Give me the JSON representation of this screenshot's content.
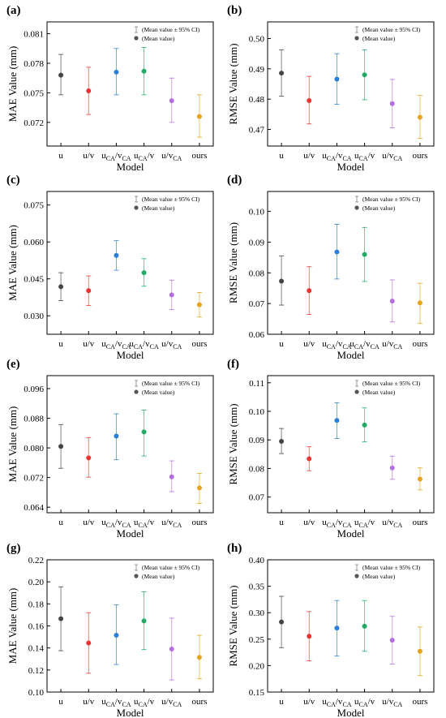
{
  "colors": [
    "#444444",
    "#ee3333",
    "#2b7fd9",
    "#22aa66",
    "#b36fe0",
    "#e6a417"
  ],
  "legend": {
    "ci": "(Mean value ± 95% CI)",
    "mean": "(Mean value)"
  },
  "chart_data": [
    {
      "type": "scatter",
      "panel": "(a)",
      "xlabel": "Model",
      "ylabel": "MAE Value (mm)",
      "ylim": [
        0.0696,
        0.0822
      ],
      "yticks": [
        "0.072",
        "0.075",
        "0.078",
        "0.081"
      ],
      "categories": [
        {
          "main": "u",
          "sub1": "",
          "mid": "",
          "sub2": ""
        },
        {
          "main": "u/v",
          "sub1": "",
          "mid": "",
          "sub2": ""
        },
        {
          "main": "u",
          "sub1": "CA",
          "mid": "/v",
          "sub2": "CA"
        },
        {
          "main": "u",
          "sub1": "CA",
          "mid": "/v",
          "sub2": ""
        },
        {
          "main": "u/v",
          "sub1": "CA",
          "mid": "",
          "sub2": ""
        },
        {
          "main": "ours",
          "sub1": "",
          "mid": "",
          "sub2": ""
        }
      ],
      "mean": [
        0.0768,
        0.0752,
        0.0771,
        0.0772,
        0.0742,
        0.0726
      ],
      "lower": [
        0.0748,
        0.0728,
        0.0748,
        0.0748,
        0.072,
        0.0705
      ],
      "upper": [
        0.0789,
        0.0776,
        0.0795,
        0.0796,
        0.0765,
        0.0748
      ]
    },
    {
      "type": "scatter",
      "panel": "(b)",
      "xlabel": "Model",
      "ylabel": "RMSE Value (mm)",
      "ylim": [
        0.4645,
        0.5055
      ],
      "yticks": [
        "0.47",
        "0.48",
        "0.49",
        "0.50"
      ],
      "categories": [
        {
          "main": "u",
          "sub1": "",
          "mid": "",
          "sub2": ""
        },
        {
          "main": "u/v",
          "sub1": "",
          "mid": "",
          "sub2": ""
        },
        {
          "main": "u",
          "sub1": "CA",
          "mid": "/v",
          "sub2": "CA"
        },
        {
          "main": "u",
          "sub1": "CA",
          "mid": "/v",
          "sub2": ""
        },
        {
          "main": "u/v",
          "sub1": "CA",
          "mid": "",
          "sub2": ""
        },
        {
          "main": "ours",
          "sub1": "",
          "mid": "",
          "sub2": ""
        }
      ],
      "mean": [
        0.4886,
        0.4795,
        0.4866,
        0.488,
        0.4785,
        0.474
      ],
      "lower": [
        0.481,
        0.4718,
        0.4783,
        0.4798,
        0.4705,
        0.467
      ],
      "upper": [
        0.4963,
        0.4875,
        0.495,
        0.4963,
        0.4865,
        0.4812
      ]
    },
    {
      "type": "scatter",
      "panel": "(c)",
      "xlabel": "Model",
      "ylabel": "MAE Value (mm)",
      "ylim": [
        0.0225,
        0.0805
      ],
      "yticks": [
        "0.030",
        "0.045",
        "0.060",
        "0.075"
      ],
      "categories": [
        {
          "main": "u",
          "sub1": "",
          "mid": "",
          "sub2": ""
        },
        {
          "main": "u/v",
          "sub1": "",
          "mid": "",
          "sub2": ""
        },
        {
          "main": "u",
          "sub1": "CA",
          "mid": "/v",
          "sub2": "CA"
        },
        {
          "main": "u",
          "sub1": "CA",
          "mid": "/v",
          "sub2": "CA"
        },
        {
          "main": "u/v",
          "sub1": "CA",
          "mid": "",
          "sub2": ""
        },
        {
          "main": "ours",
          "sub1": "",
          "mid": "",
          "sub2": ""
        }
      ],
      "mean": [
        0.0418,
        0.0402,
        0.0545,
        0.0475,
        0.0385,
        0.0345
      ],
      "lower": [
        0.0362,
        0.0342,
        0.0485,
        0.042,
        0.0325,
        0.0295
      ],
      "upper": [
        0.0475,
        0.0462,
        0.0605,
        0.0532,
        0.0445,
        0.0395
      ]
    },
    {
      "type": "scatter",
      "panel": "(d)",
      "xlabel": "Model",
      "ylabel": "RMSE Value (mm)",
      "ylim": [
        0.06,
        0.1065
      ],
      "yticks": [
        "0.06",
        "0.07",
        "0.08",
        "0.09",
        "0.10"
      ],
      "categories": [
        {
          "main": "u",
          "sub1": "",
          "mid": "",
          "sub2": ""
        },
        {
          "main": "u/v",
          "sub1": "",
          "mid": "",
          "sub2": ""
        },
        {
          "main": "u",
          "sub1": "CA",
          "mid": "/v",
          "sub2": "CA"
        },
        {
          "main": "u",
          "sub1": "CA",
          "mid": "/v",
          "sub2": "CA"
        },
        {
          "main": "u/v",
          "sub1": "CA",
          "mid": "",
          "sub2": ""
        },
        {
          "main": "ours",
          "sub1": "",
          "mid": "",
          "sub2": ""
        }
      ],
      "mean": [
        0.0773,
        0.0742,
        0.0868,
        0.086,
        0.0708,
        0.0702
      ],
      "lower": [
        0.0695,
        0.0665,
        0.078,
        0.0772,
        0.064,
        0.0635
      ],
      "upper": [
        0.0855,
        0.082,
        0.0958,
        0.0948,
        0.0777,
        0.0766
      ]
    },
    {
      "type": "scatter",
      "panel": "(e)",
      "xlabel": "Model",
      "ylabel": "MAE Value (mm)",
      "ylim": [
        0.0625,
        0.0995
      ],
      "yticks": [
        "0.064",
        "0.072",
        "0.080",
        "0.088",
        "0.096"
      ],
      "categories": [
        {
          "main": "u",
          "sub1": "",
          "mid": "",
          "sub2": ""
        },
        {
          "main": "u/v",
          "sub1": "",
          "mid": "",
          "sub2": ""
        },
        {
          "main": "u",
          "sub1": "CA",
          "mid": "/v",
          "sub2": "CA"
        },
        {
          "main": "u",
          "sub1": "CA",
          "mid": "/v",
          "sub2": ""
        },
        {
          "main": "u/v",
          "sub1": "CA",
          "mid": "",
          "sub2": ""
        },
        {
          "main": "ours",
          "sub1": "",
          "mid": "",
          "sub2": ""
        }
      ],
      "mean": [
        0.0804,
        0.0773,
        0.0832,
        0.0843,
        0.0722,
        0.0692
      ],
      "lower": [
        0.0745,
        0.0721,
        0.0768,
        0.0778,
        0.0682,
        0.065
      ],
      "upper": [
        0.0863,
        0.0828,
        0.0892,
        0.0902,
        0.0765,
        0.0731
      ]
    },
    {
      "type": "scatter",
      "panel": "(f)",
      "xlabel": "Model",
      "ylabel": "RMSE Value (mm)",
      "ylim": [
        0.0645,
        0.1125
      ],
      "yticks": [
        "0.07",
        "0.08",
        "0.09",
        "0.10",
        "0.11"
      ],
      "categories": [
        {
          "main": "u",
          "sub1": "",
          "mid": "",
          "sub2": ""
        },
        {
          "main": "u/v",
          "sub1": "",
          "mid": "",
          "sub2": ""
        },
        {
          "main": "u",
          "sub1": "CA",
          "mid": "/v",
          "sub2": "CA"
        },
        {
          "main": "u",
          "sub1": "CA",
          "mid": "/v",
          "sub2": ""
        },
        {
          "main": "u/v",
          "sub1": "CA",
          "mid": "",
          "sub2": ""
        },
        {
          "main": "ours",
          "sub1": "",
          "mid": "",
          "sub2": ""
        }
      ],
      "mean": [
        0.0895,
        0.0834,
        0.0968,
        0.0952,
        0.0802,
        0.0763
      ],
      "lower": [
        0.0852,
        0.0792,
        0.0905,
        0.0893,
        0.0762,
        0.0725
      ],
      "upper": [
        0.094,
        0.0876,
        0.103,
        0.1012,
        0.0843,
        0.0802
      ]
    },
    {
      "type": "scatter",
      "panel": "(g)",
      "xlabel": "Model",
      "ylabel": "MAE Value (mm)",
      "ylim": [
        0.1,
        0.22
      ],
      "yticks": [
        "0.10",
        "0.12",
        "0.14",
        "0.16",
        "0.18",
        "0.20",
        "0.22"
      ],
      "categories": [
        {
          "main": "u",
          "sub1": "",
          "mid": "",
          "sub2": ""
        },
        {
          "main": "u/v",
          "sub1": "",
          "mid": "",
          "sub2": ""
        },
        {
          "main": "u",
          "sub1": "CA",
          "mid": "/v",
          "sub2": "CA"
        },
        {
          "main": "u",
          "sub1": "CA",
          "mid": "/v",
          "sub2": ""
        },
        {
          "main": "u/v",
          "sub1": "CA",
          "mid": "",
          "sub2": ""
        },
        {
          "main": "ours",
          "sub1": "",
          "mid": "",
          "sub2": ""
        }
      ],
      "mean": [
        0.1665,
        0.1445,
        0.1515,
        0.1645,
        0.139,
        0.1315
      ],
      "lower": [
        0.1375,
        0.117,
        0.125,
        0.1385,
        0.111,
        0.112
      ],
      "upper": [
        0.1955,
        0.172,
        0.179,
        0.191,
        0.167,
        0.1515
      ]
    },
    {
      "type": "scatter",
      "panel": "(h)",
      "xlabel": "Model",
      "ylabel": "RMSE Value (mm)",
      "ylim": [
        0.15,
        0.4
      ],
      "yticks": [
        "0.15",
        "0.20",
        "0.25",
        "0.30",
        "0.35",
        "0.40"
      ],
      "categories": [
        {
          "main": "u",
          "sub1": "",
          "mid": "",
          "sub2": ""
        },
        {
          "main": "u/v",
          "sub1": "",
          "mid": "",
          "sub2": ""
        },
        {
          "main": "u",
          "sub1": "CA",
          "mid": "/v",
          "sub2": "CA"
        },
        {
          "main": "u",
          "sub1": "CA",
          "mid": "/v",
          "sub2": ""
        },
        {
          "main": "u/v",
          "sub1": "CA",
          "mid": "",
          "sub2": ""
        },
        {
          "main": "ours",
          "sub1": "",
          "mid": "",
          "sub2": ""
        }
      ],
      "mean": [
        0.2825,
        0.2555,
        0.271,
        0.2745,
        0.248,
        0.227
      ],
      "lower": [
        0.234,
        0.209,
        0.218,
        0.227,
        0.203,
        0.181
      ],
      "upper": [
        0.331,
        0.302,
        0.323,
        0.323,
        0.293,
        0.273
      ]
    }
  ]
}
